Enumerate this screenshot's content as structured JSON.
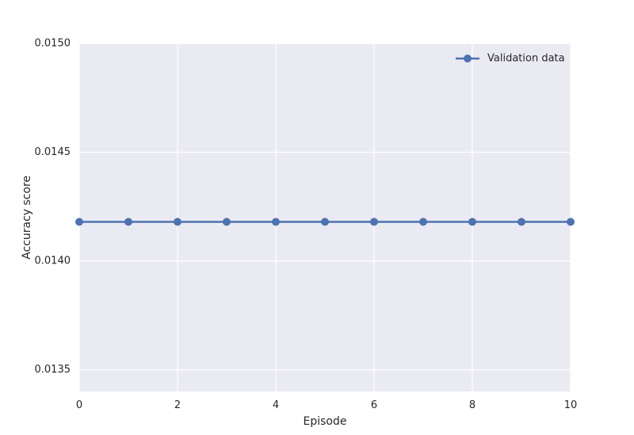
{
  "chart_data": {
    "type": "line",
    "title": "",
    "xlabel": "Episode",
    "ylabel": "Accuracy score",
    "xlim": [
      0,
      10
    ],
    "ylim": [
      0.0134,
      0.015
    ],
    "x_ticks": [
      0,
      2,
      4,
      6,
      8,
      10
    ],
    "x_tick_labels": [
      "0",
      "2",
      "4",
      "6",
      "8",
      "10"
    ],
    "y_ticks": [
      0.0135,
      0.014,
      0.0145,
      0.015
    ],
    "y_tick_labels": [
      "0.0135",
      "0.0140",
      "0.0145",
      "0.0150"
    ],
    "grid": true,
    "legend_position": "top-right",
    "series": [
      {
        "name": "Validation data",
        "color": "#4c72b0",
        "marker": "circle",
        "x": [
          0,
          1,
          2,
          3,
          4,
          5,
          6,
          7,
          8,
          9,
          10
        ],
        "y": [
          0.01418,
          0.01418,
          0.01418,
          0.01418,
          0.01418,
          0.01418,
          0.01418,
          0.01418,
          0.01418,
          0.01418,
          0.01418
        ]
      }
    ],
    "colors": {
      "plot_background": "#eaeaf2",
      "grid": "#ffffff",
      "text": "#262626"
    }
  }
}
